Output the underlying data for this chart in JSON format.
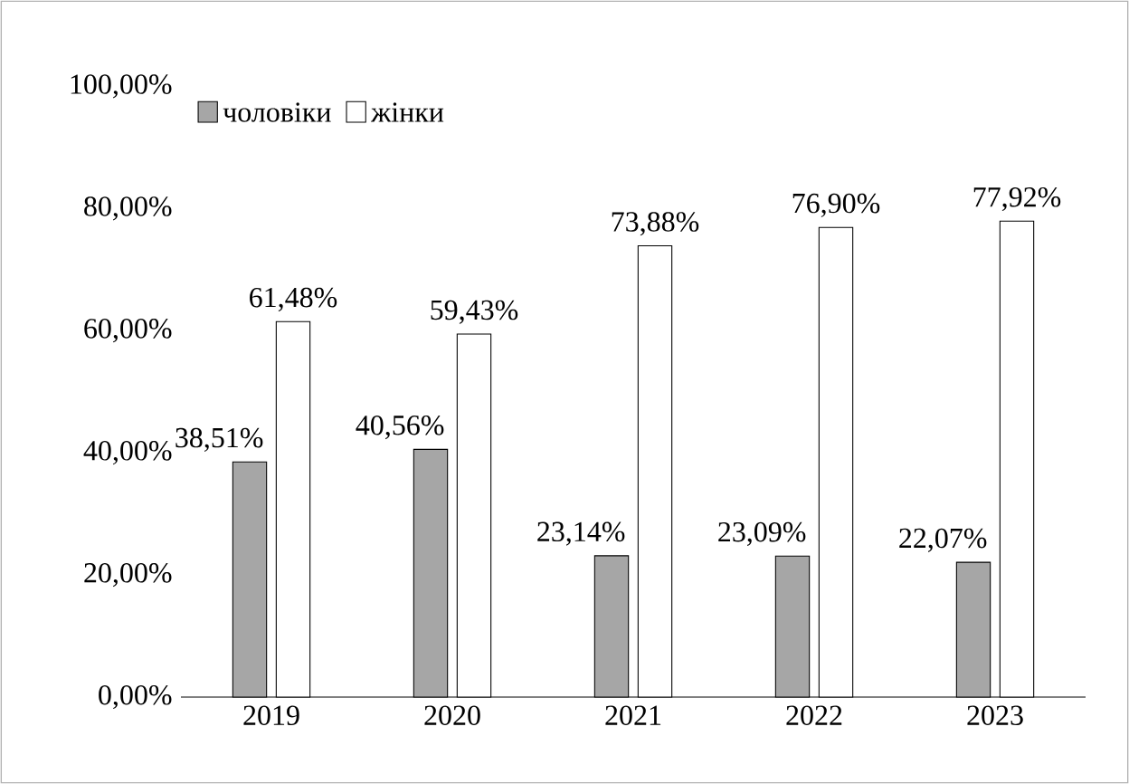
{
  "chart_data": {
    "type": "bar",
    "categories": [
      "2019",
      "2020",
      "2021",
      "2022",
      "2023"
    ],
    "series": [
      {
        "name": "чоловіки",
        "color": "#a6a6a6",
        "values": [
          38.51,
          40.56,
          23.14,
          23.09,
          22.07
        ],
        "value_labels": [
          "38,51%",
          "40,56%",
          "23,14%",
          "23,09%",
          "22,07%"
        ]
      },
      {
        "name": "жінки",
        "color": "#ffffff",
        "values": [
          61.48,
          59.43,
          73.88,
          76.9,
          77.92
        ],
        "value_labels": [
          "61,48%",
          "59,43%",
          "73,88%",
          "76,90%",
          "77,92%"
        ]
      }
    ],
    "ylim": [
      0,
      100
    ],
    "yticks": [
      {
        "value": 0,
        "label": "0,00%"
      },
      {
        "value": 20,
        "label": "20,00%"
      },
      {
        "value": 40,
        "label": "40,00%"
      },
      {
        "value": 60,
        "label": "60,00%"
      },
      {
        "value": 80,
        "label": "80,00%"
      },
      {
        "value": 100,
        "label": "100,00%"
      }
    ],
    "grid": false,
    "legend": "top left"
  }
}
